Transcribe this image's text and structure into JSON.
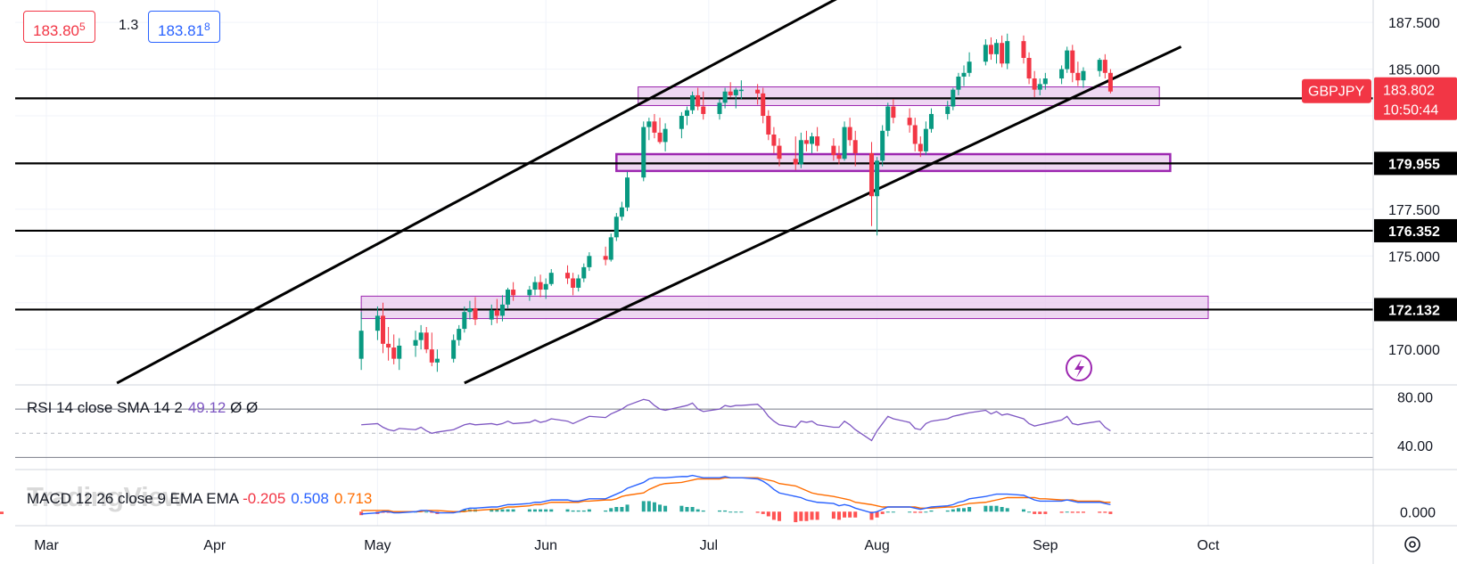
{
  "header": {
    "bid_main": "183.80",
    "bid_small": "5",
    "spread": "1.3",
    "ask_main": "183.81",
    "ask_small": "8"
  },
  "chart_data": {
    "type": "candlestick",
    "symbol": "GBPJPY",
    "last_price": "183.802",
    "countdown": "10:50:44",
    "colors": {
      "up": "#089981",
      "down": "#f23645",
      "zone_fill": "#e8c9ee",
      "zone_border": "#9c27b0",
      "rsi": "#7e57c2",
      "macd": "#2962ff",
      "signal": "#ff6d00",
      "symbol_label": "#f23645"
    },
    "x_axis": {
      "labels": [
        "Mar",
        "Apr",
        "May",
        "Jun",
        "Jul",
        "Aug",
        "Sep",
        "Oct"
      ]
    },
    "y_axis": {
      "ticks": [
        170.0,
        172.5,
        175.0,
        177.5,
        180.0,
        182.5,
        185.0,
        187.5
      ],
      "tick_labels": [
        "170.000",
        "175.000",
        "177.500",
        "185.000",
        "187.500"
      ],
      "range": [
        168.1,
        188.7
      ]
    },
    "horizontal_levels": [
      {
        "label": "183.438",
        "value": 183.438
      },
      {
        "label": "179.955",
        "value": 179.955
      },
      {
        "label": "176.352",
        "value": 176.352
      },
      {
        "label": "172.132",
        "value": 172.132
      }
    ],
    "zones": [
      {
        "from_date": "2023-06-18",
        "to_date": "2023-09-22",
        "low": 183.05,
        "high": 184.05
      },
      {
        "from_date": "2023-06-14",
        "to_date": "2023-09-24",
        "low": 179.55,
        "high": 180.45
      },
      {
        "from_date": "2023-04-28",
        "to_date": "2023-10-01",
        "low": 171.65,
        "high": 172.85
      }
    ],
    "trend_lines": [
      {
        "from": [
          "2023-03-14",
          168.2
        ],
        "to": [
          "2023-07-28",
          189.3
        ]
      },
      {
        "from": [
          "2023-05-17",
          168.2
        ],
        "to": [
          "2023-09-26",
          186.2
        ]
      }
    ],
    "candles_ohlc": [
      [
        "2023-04-28",
        169.5,
        172.0,
        168.9,
        171.0
      ],
      [
        "2023-05-01",
        171.0,
        172.3,
        170.5,
        171.8
      ],
      [
        "2023-05-02",
        171.8,
        172.5,
        169.8,
        170.3
      ],
      [
        "2023-05-03",
        170.3,
        171.2,
        169.4,
        170.1
      ],
      [
        "2023-05-04",
        170.1,
        170.8,
        169.2,
        169.5
      ],
      [
        "2023-05-05",
        169.5,
        170.6,
        168.9,
        170.2
      ],
      [
        "2023-05-08",
        170.2,
        171.0,
        169.6,
        170.5
      ],
      [
        "2023-05-09",
        170.5,
        171.3,
        170.0,
        170.9
      ],
      [
        "2023-05-10",
        170.9,
        171.2,
        169.8,
        170.0
      ],
      [
        "2023-05-11",
        170.0,
        170.9,
        169.1,
        169.3
      ],
      [
        "2023-05-12",
        169.3,
        170.0,
        168.8,
        169.5
      ],
      [
        "2023-05-15",
        169.5,
        170.8,
        169.3,
        170.5
      ],
      [
        "2023-05-16",
        170.5,
        171.3,
        170.2,
        171.1
      ],
      [
        "2023-05-17",
        171.1,
        172.3,
        170.9,
        172.0
      ],
      [
        "2023-05-18",
        172.0,
        172.6,
        171.6,
        172.2
      ],
      [
        "2023-05-19",
        172.2,
        172.8,
        171.3,
        171.6
      ],
      [
        "2023-05-22",
        171.6,
        172.4,
        171.3,
        172.1
      ],
      [
        "2023-05-23",
        172.1,
        172.7,
        171.4,
        171.8
      ],
      [
        "2023-05-24",
        171.8,
        172.9,
        171.5,
        172.4
      ],
      [
        "2023-05-25",
        172.4,
        173.3,
        172.2,
        173.2
      ],
      [
        "2023-05-26",
        173.2,
        173.6,
        172.6,
        172.9
      ],
      [
        "2023-05-29",
        172.9,
        173.4,
        172.6,
        173.2
      ],
      [
        "2023-05-30",
        173.2,
        173.9,
        172.9,
        173.6
      ],
      [
        "2023-05-31",
        173.6,
        174.0,
        172.8,
        173.2
      ],
      [
        "2023-06-01",
        173.2,
        173.8,
        172.7,
        173.5
      ],
      [
        "2023-06-02",
        173.5,
        174.3,
        173.4,
        174.1
      ],
      [
        "2023-06-05",
        174.1,
        174.5,
        173.5,
        173.8
      ],
      [
        "2023-06-06",
        173.8,
        174.1,
        172.9,
        173.3
      ],
      [
        "2023-06-07",
        173.3,
        174.0,
        173.1,
        173.8
      ],
      [
        "2023-06-08",
        173.8,
        174.6,
        173.6,
        174.4
      ],
      [
        "2023-06-09",
        174.4,
        175.2,
        174.2,
        175.0
      ],
      [
        "2023-06-12",
        175.0,
        175.5,
        174.5,
        174.8
      ],
      [
        "2023-06-13",
        174.8,
        176.2,
        174.7,
        176.0
      ],
      [
        "2023-06-14",
        176.0,
        177.3,
        175.8,
        177.1
      ],
      [
        "2023-06-15",
        177.1,
        177.9,
        176.9,
        177.6
      ],
      [
        "2023-06-16",
        177.6,
        179.5,
        177.4,
        179.2
      ],
      [
        "2023-06-19",
        179.2,
        182.2,
        179.0,
        181.9
      ],
      [
        "2023-06-20",
        181.9,
        182.4,
        181.2,
        182.2
      ],
      [
        "2023-06-21",
        182.2,
        182.6,
        181.3,
        181.6
      ],
      [
        "2023-06-22",
        181.6,
        182.4,
        181.0,
        181.1
      ],
      [
        "2023-06-23",
        181.1,
        182.1,
        180.6,
        181.8
      ],
      [
        "2023-06-26",
        181.8,
        182.7,
        181.3,
        182.5
      ],
      [
        "2023-06-27",
        182.5,
        183.0,
        182.0,
        182.8
      ],
      [
        "2023-06-28",
        182.8,
        183.8,
        182.6,
        183.6
      ],
      [
        "2023-06-29",
        183.6,
        184.0,
        182.8,
        183.0
      ],
      [
        "2023-06-30",
        183.0,
        183.8,
        182.3,
        182.6
      ],
      [
        "2023-07-03",
        182.6,
        183.4,
        182.3,
        183.2
      ],
      [
        "2023-07-04",
        183.2,
        184.0,
        182.9,
        183.8
      ],
      [
        "2023-07-05",
        183.8,
        184.3,
        183.5,
        183.6
      ],
      [
        "2023-07-06",
        183.6,
        184.0,
        182.9,
        183.9
      ],
      [
        "2023-07-07",
        183.9,
        184.4,
        183.4,
        183.9
      ],
      [
        "2023-07-10",
        183.9,
        184.2,
        183.1,
        183.7
      ],
      [
        "2023-07-11",
        183.7,
        184.0,
        182.1,
        182.5
      ],
      [
        "2023-07-12",
        182.5,
        182.8,
        181.2,
        181.5
      ],
      [
        "2023-07-13",
        181.5,
        181.9,
        180.5,
        180.9
      ],
      [
        "2023-07-14",
        180.9,
        181.3,
        179.8,
        180.2
      ],
      [
        "2023-07-17",
        180.2,
        181.4,
        179.6,
        179.9
      ],
      [
        "2023-07-18",
        179.9,
        181.6,
        179.7,
        181.2
      ],
      [
        "2023-07-19",
        181.2,
        181.7,
        180.6,
        181.0
      ],
      [
        "2023-07-20",
        181.0,
        181.6,
        180.5,
        181.4
      ],
      [
        "2023-07-21",
        181.4,
        181.9,
        180.6,
        180.9
      ],
      [
        "2023-07-24",
        180.9,
        181.3,
        180.1,
        180.4
      ],
      [
        "2023-07-25",
        180.4,
        180.9,
        179.9,
        180.2
      ],
      [
        "2023-07-26",
        180.2,
        182.2,
        180.1,
        181.9
      ],
      [
        "2023-07-27",
        181.9,
        182.4,
        180.9,
        181.2
      ],
      [
        "2023-07-28",
        181.2,
        181.7,
        179.8,
        180.5
      ],
      [
        "2023-07-31",
        180.5,
        181.1,
        176.6,
        178.2
      ],
      [
        "2023-08-01",
        178.2,
        180.3,
        176.1,
        180.1
      ],
      [
        "2023-08-02",
        180.1,
        182.0,
        179.8,
        181.7
      ],
      [
        "2023-08-03",
        181.7,
        183.2,
        181.4,
        183.0
      ],
      [
        "2023-08-04",
        183.0,
        183.4,
        182.1,
        182.4
      ],
      [
        "2023-08-07",
        182.4,
        182.9,
        181.6,
        182.0
      ],
      [
        "2023-08-08",
        182.0,
        182.4,
        180.6,
        181.0
      ],
      [
        "2023-08-09",
        181.0,
        181.4,
        180.3,
        180.6
      ],
      [
        "2023-08-10",
        180.6,
        182.2,
        180.4,
        181.8
      ],
      [
        "2023-08-11",
        181.8,
        182.9,
        181.6,
        182.6
      ],
      [
        "2023-08-14",
        182.6,
        183.3,
        182.3,
        183.0
      ],
      [
        "2023-08-15",
        183.0,
        184.0,
        182.8,
        183.9
      ],
      [
        "2023-08-16",
        183.9,
        184.8,
        183.6,
        184.6
      ],
      [
        "2023-08-17",
        184.6,
        185.2,
        184.1,
        184.8
      ],
      [
        "2023-08-18",
        184.8,
        185.9,
        184.6,
        185.4
      ],
      [
        "2023-08-21",
        185.4,
        186.6,
        185.2,
        186.3
      ],
      [
        "2023-08-22",
        186.3,
        186.7,
        185.5,
        185.8
      ],
      [
        "2023-08-23",
        185.8,
        186.6,
        185.3,
        186.4
      ],
      [
        "2023-08-24",
        186.4,
        186.8,
        185.1,
        185.3
      ],
      [
        "2023-08-25",
        185.3,
        186.9,
        185.0,
        186.5
      ],
      [
        "2023-08-28",
        186.5,
        186.8,
        185.3,
        185.6
      ],
      [
        "2023-08-29",
        185.6,
        185.9,
        184.2,
        184.5
      ],
      [
        "2023-08-30",
        184.5,
        184.9,
        183.5,
        183.9
      ],
      [
        "2023-08-31",
        183.9,
        184.5,
        183.6,
        184.2
      ],
      [
        "2023-09-01",
        184.2,
        184.8,
        183.9,
        184.5
      ],
      [
        "2023-09-04",
        184.5,
        185.2,
        184.2,
        185.0
      ],
      [
        "2023-09-05",
        185.0,
        186.2,
        184.8,
        186.0
      ],
      [
        "2023-09-06",
        186.0,
        186.3,
        184.3,
        184.8
      ],
      [
        "2023-09-07",
        184.8,
        185.4,
        184.1,
        184.4
      ],
      [
        "2023-09-08",
        184.4,
        185.1,
        184.0,
        184.9
      ],
      [
        "2023-09-11",
        184.9,
        185.6,
        184.6,
        185.5
      ],
      [
        "2023-09-12",
        185.5,
        185.8,
        184.5,
        184.8
      ],
      [
        "2023-09-13",
        184.8,
        185.0,
        183.7,
        183.802
      ]
    ],
    "rsi": {
      "label": "RSI 14 close SMA 14 2",
      "value": "49.12",
      "extra": "Ø Ø",
      "ticks": [
        "80.00",
        "40.00"
      ],
      "range": [
        20,
        90
      ],
      "bands": [
        70,
        50,
        30
      ],
      "values": [
        57,
        58,
        55,
        53,
        52,
        54,
        53,
        55,
        52,
        50,
        51,
        53,
        55,
        57,
        58,
        57,
        58,
        57,
        58,
        60,
        58,
        59,
        61,
        59,
        60,
        62,
        60,
        58,
        60,
        62,
        64,
        63,
        66,
        68,
        70,
        73,
        78,
        77,
        73,
        70,
        69,
        72,
        73,
        75,
        70,
        68,
        70,
        73,
        72,
        73,
        73,
        74,
        70,
        64,
        60,
        57,
        55,
        60,
        59,
        60,
        57,
        55,
        55,
        60,
        57,
        53,
        44,
        52,
        58,
        64,
        62,
        59,
        54,
        53,
        58,
        60,
        62,
        64,
        65,
        66,
        67,
        69,
        66,
        68,
        65,
        66,
        62,
        58,
        56,
        57,
        58,
        61,
        64,
        58,
        57,
        58,
        60,
        55,
        52,
        49.12
      ]
    },
    "macd": {
      "label": "MACD 12 26 close 9 EMA EMA",
      "histogram": "-0.205",
      "macd": "0.508",
      "signal": "0.713",
      "ticks": [
        "0.000"
      ],
      "range": [
        -1.2,
        3.6
      ],
      "macd_values": [
        -0.2,
        -0.1,
        0.0,
        0.0,
        -0.1,
        -0.1,
        0.0,
        0.1,
        0.1,
        0.0,
        -0.1,
        -0.1,
        0.0,
        0.2,
        0.3,
        0.3,
        0.4,
        0.4,
        0.5,
        0.6,
        0.6,
        0.7,
        0.8,
        0.8,
        0.9,
        1.0,
        1.0,
        0.9,
        0.9,
        1.0,
        1.1,
        1.1,
        1.3,
        1.5,
        1.7,
        2.0,
        2.5,
        2.8,
        2.9,
        2.9,
        2.9,
        3.0,
        3.0,
        3.1,
        3.0,
        2.9,
        2.9,
        3.0,
        2.9,
        2.9,
        2.9,
        2.8,
        2.6,
        2.3,
        1.9,
        1.6,
        1.3,
        1.2,
        1.0,
        0.9,
        0.8,
        0.7,
        0.5,
        0.6,
        0.5,
        0.3,
        -0.1,
        0.0,
        0.2,
        0.4,
        0.4,
        0.4,
        0.3,
        0.2,
        0.3,
        0.4,
        0.5,
        0.6,
        0.8,
        0.9,
        1.1,
        1.3,
        1.4,
        1.5,
        1.5,
        1.5,
        1.4,
        1.2,
        1.0,
        0.9,
        0.9,
        0.9,
        1.0,
        0.9,
        0.8,
        0.8,
        0.8,
        0.7,
        0.6,
        0.508
      ],
      "signal_values": [
        0.1,
        0.1,
        0.1,
        0.1,
        0.0,
        0.0,
        0.0,
        0.0,
        0.1,
        0.1,
        0.1,
        0.0,
        0.0,
        0.0,
        0.1,
        0.1,
        0.2,
        0.2,
        0.3,
        0.4,
        0.4,
        0.5,
        0.6,
        0.6,
        0.7,
        0.8,
        0.8,
        0.8,
        0.8,
        0.9,
        0.9,
        1.0,
        1.0,
        1.1,
        1.3,
        1.4,
        1.6,
        1.9,
        2.1,
        2.3,
        2.4,
        2.5,
        2.6,
        2.7,
        2.8,
        2.8,
        2.8,
        2.9,
        2.9,
        2.9,
        2.9,
        2.9,
        2.8,
        2.7,
        2.6,
        2.4,
        2.2,
        2.0,
        1.8,
        1.6,
        1.5,
        1.3,
        1.2,
        1.1,
        1.0,
        0.8,
        0.6,
        0.5,
        0.4,
        0.4,
        0.4,
        0.4,
        0.4,
        0.3,
        0.3,
        0.3,
        0.4,
        0.4,
        0.5,
        0.6,
        0.7,
        0.8,
        0.9,
        1.0,
        1.1,
        1.2,
        1.2,
        1.2,
        1.2,
        1.1,
        1.1,
        1.0,
        1.0,
        1.0,
        0.9,
        0.9,
        0.9,
        0.8,
        0.8,
        0.713
      ]
    }
  }
}
